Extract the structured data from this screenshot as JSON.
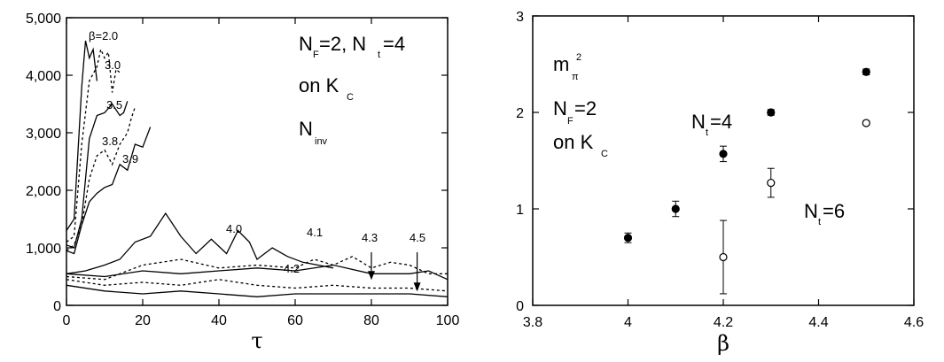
{
  "chart_data": [
    {
      "type": "line",
      "xlabel": "τ",
      "ylabel": "",
      "xlim": [
        0,
        100
      ],
      "ylim": [
        0,
        5000
      ],
      "x_ticks": [
        "0",
        "20",
        "40",
        "60",
        "80",
        "100"
      ],
      "y_ticks": [
        "0",
        "1,000",
        "2,000",
        "3,000",
        "4,000",
        "5,000"
      ],
      "legend_lines": {
        "l1_main": "N",
        "l1_sub": "F",
        "l1_rest": "=2, N",
        "l1_sub2": "t",
        "l1_end": "=4",
        "l2_main": "on K",
        "l2_sub": "C",
        "l3_main": "N",
        "l3_sub": "inv"
      },
      "series": [
        {
          "label": "β=2.0",
          "style": "solid",
          "x": [
            0,
            2,
            4,
            5,
            6,
            7,
            8
          ],
          "y": [
            1300,
            1500,
            3800,
            4600,
            4300,
            4450,
            3900
          ]
        },
        {
          "label": "3.0",
          "style": "dashed",
          "x": [
            0,
            2,
            4,
            6,
            8,
            9,
            10,
            11,
            12,
            13,
            14
          ],
          "y": [
            1100,
            1200,
            2800,
            3900,
            4150,
            4450,
            4300,
            4400,
            3700,
            4100,
            4050
          ]
        },
        {
          "label": "3.5",
          "style": "solid",
          "x": [
            0,
            2,
            4,
            6,
            8,
            10,
            12,
            14,
            15,
            16
          ],
          "y": [
            1050,
            1000,
            1500,
            2900,
            3300,
            3350,
            3500,
            3300,
            3350,
            3550
          ]
        },
        {
          "label": "3.8",
          "style": "dashed",
          "x": [
            0,
            2,
            4,
            6,
            8,
            10,
            12,
            14,
            16,
            17,
            18
          ],
          "y": [
            950,
            1050,
            1400,
            2200,
            2600,
            2700,
            2450,
            2800,
            3000,
            3250,
            3450
          ]
        },
        {
          "label": "3.9",
          "style": "solid",
          "x": [
            0,
            2,
            4,
            6,
            8,
            10,
            12,
            14,
            16,
            18,
            20,
            22
          ],
          "y": [
            950,
            900,
            1400,
            1800,
            1950,
            2050,
            2100,
            2450,
            2350,
            2800,
            2750,
            3100
          ]
        },
        {
          "label": "4.0",
          "style": "solid",
          "x": [
            0,
            5,
            10,
            14,
            18,
            22,
            26,
            30,
            34,
            38,
            42,
            45,
            48,
            50,
            54,
            58,
            62,
            66,
            70
          ],
          "y": [
            550,
            600,
            700,
            800,
            1100,
            1200,
            1600,
            1200,
            900,
            1150,
            900,
            1300,
            1100,
            800,
            1000,
            850,
            750,
            700,
            650
          ]
        },
        {
          "label": "4.1",
          "style": "dashed",
          "x": [
            0,
            10,
            20,
            30,
            40,
            50,
            60,
            65,
            70,
            75,
            80,
            85,
            90,
            95,
            100
          ],
          "y": [
            500,
            450,
            700,
            800,
            650,
            700,
            650,
            800,
            700,
            850,
            650,
            750,
            700,
            550,
            550
          ]
        },
        {
          "label": "4.3",
          "style": "solid",
          "x": [
            0,
            10,
            20,
            30,
            40,
            50,
            60,
            70,
            80,
            90,
            95,
            100
          ],
          "y": [
            550,
            500,
            600,
            550,
            600,
            650,
            600,
            700,
            550,
            550,
            600,
            450
          ]
        },
        {
          "label": "4.2",
          "style": "dashed",
          "x": [
            0,
            10,
            20,
            30,
            40,
            50,
            60,
            70,
            80,
            90,
            100
          ],
          "y": [
            450,
            350,
            400,
            350,
            450,
            350,
            300,
            350,
            300,
            300,
            250
          ]
        },
        {
          "label": "4.5",
          "style": "solid",
          "x": [
            0,
            10,
            20,
            30,
            40,
            50,
            60,
            70,
            80,
            90,
            100
          ],
          "y": [
            350,
            250,
            200,
            250,
            200,
            150,
            200,
            200,
            200,
            200,
            150
          ]
        }
      ],
      "arrows": [
        {
          "label": "4.3",
          "x": 80,
          "y_from": 1100,
          "y_to": 350
        },
        {
          "label": "4.5",
          "x": 92,
          "y_from": 1100,
          "y_to": 150
        }
      ]
    },
    {
      "type": "scatter",
      "xlabel": "β",
      "ylabel": "",
      "xlim": [
        3.8,
        4.6
      ],
      "ylim": [
        0,
        3
      ],
      "x_ticks": [
        "3.8",
        "4",
        "4.2",
        "4.4",
        "4.6"
      ],
      "y_ticks": [
        "0",
        "1",
        "2",
        "3"
      ],
      "legend_lines": {
        "title_main": "m",
        "title_sub": "π",
        "title_sup": "2",
        "nf_main": "N",
        "nf_sub": "F",
        "nf_rest": "=2",
        "kc_main": "on K",
        "kc_sub": "C"
      },
      "series": [
        {
          "label_main": "N",
          "label_sub": "t",
          "label_rest": "=4",
          "marker": "filled",
          "x": [
            4.0,
            4.1,
            4.2,
            4.3,
            4.5
          ],
          "y": [
            0.7,
            1.0,
            1.57,
            2.0,
            2.42
          ],
          "err": [
            0.05,
            0.08,
            0.08,
            0.03,
            0.03
          ]
        },
        {
          "label_main": "N",
          "label_sub": "t",
          "label_rest": "=6",
          "marker": "open",
          "x": [
            4.2,
            4.3,
            4.5
          ],
          "y": [
            0.5,
            1.27,
            1.89
          ],
          "err": [
            0.38,
            0.15,
            0.02
          ]
        }
      ]
    }
  ]
}
